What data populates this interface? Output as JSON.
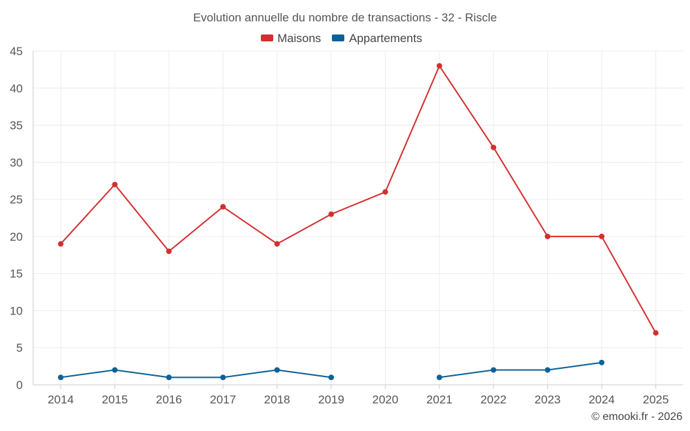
{
  "chart_data": {
    "type": "line",
    "title": "Evolution annuelle du nombre de transactions - 32 - Riscle",
    "xlabel": "",
    "ylabel": "",
    "categories": [
      "2014",
      "2015",
      "2016",
      "2017",
      "2018",
      "2019",
      "2020",
      "2021",
      "2022",
      "2023",
      "2024",
      "2025"
    ],
    "ylim": [
      0,
      45
    ],
    "yticks": [
      "0",
      "5",
      "10",
      "15",
      "20",
      "25",
      "30",
      "35",
      "40",
      "45"
    ],
    "grid": true,
    "legend_position": "top-center",
    "series": [
      {
        "name": "Maisons",
        "color": "#d32f2f",
        "values": [
          19,
          27,
          18,
          24,
          19,
          23,
          26,
          43,
          32,
          20,
          20,
          7
        ]
      },
      {
        "name": "Appartements",
        "color": "#0d6196",
        "values": [
          1,
          2,
          1,
          1,
          2,
          1,
          null,
          1,
          2,
          2,
          3,
          null
        ]
      }
    ]
  },
  "credit": "© emooki.fr - 2026"
}
